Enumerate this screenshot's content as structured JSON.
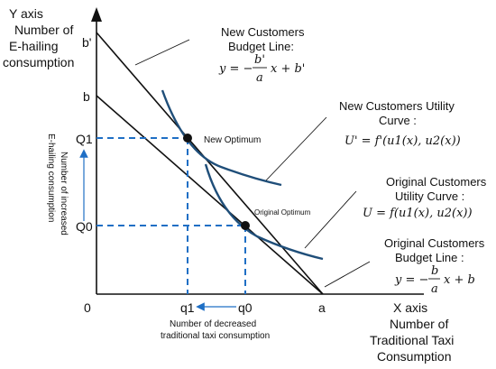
{
  "y_axis": {
    "line1": "Y axis",
    "line2": "Number of",
    "line3": "E-hailing",
    "line4": "consumption"
  },
  "x_axis": {
    "line1": "X axis",
    "line2": "Number of",
    "line3": "Traditional Taxi",
    "line4": "Consumption"
  },
  "ticks": {
    "origin": "0",
    "b_prime": "b'",
    "b": "b",
    "Q1": "Q1",
    "Q0": "Q0",
    "q1": "q1",
    "q0": "q0",
    "a": "a"
  },
  "points": {
    "new_optimum": "New Optimum",
    "original_optimum": "Original Optimum"
  },
  "annotations": {
    "increase_line1": "Number of increased",
    "increase_line2": "E-hailing consumption",
    "decrease_line1": "Number of decreased",
    "decrease_line2": "traditional taxi consumption"
  },
  "callouts": {
    "new_budget": {
      "line1": "New Customers",
      "line2": "Budget Line:",
      "eq_lhs": "y = −",
      "eq_num": "b'",
      "eq_den": "a",
      "eq_rhs": "x + b'"
    },
    "new_utility": {
      "line1": "New Customers Utility",
      "line2": "Curve :",
      "eq": "U' = f'(u1(x), u2(x))"
    },
    "orig_utility": {
      "line1": "Original Customers",
      "line2": "Utility Curve :",
      "eq": "U = f(u1(x), u2(x))"
    },
    "orig_budget": {
      "line1": "Original Customers",
      "line2": "Budget Line :",
      "eq_lhs": "y = −",
      "eq_num": "b",
      "eq_den": "a",
      "eq_rhs": "x + b"
    }
  },
  "colors": {
    "curve": "#1f4e79",
    "guide": "#1f6fc5",
    "point": "#111111",
    "axis": "#111111"
  }
}
